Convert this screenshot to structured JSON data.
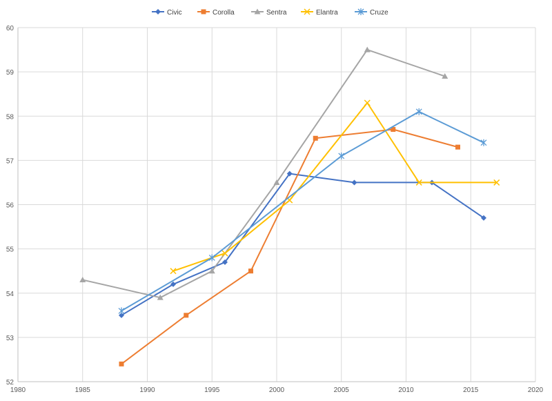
{
  "chart_data": {
    "type": "line",
    "title": "",
    "xlabel": "",
    "ylabel": "",
    "xlim": [
      1980,
      2020
    ],
    "ylim": [
      52,
      60
    ],
    "x_ticks": [
      1980,
      1985,
      1990,
      1995,
      2000,
      2005,
      2010,
      2015,
      2020
    ],
    "y_ticks": [
      52,
      53,
      54,
      55,
      56,
      57,
      58,
      59,
      60
    ],
    "grid": true,
    "legend_position": "top",
    "series": [
      {
        "name": "Civic",
        "color": "#4472C4",
        "marker": "diamond",
        "points": [
          [
            1988,
            53.5
          ],
          [
            1992,
            54.2
          ],
          [
            1996,
            54.7
          ],
          [
            2001,
            56.7
          ],
          [
            2006,
            56.5
          ],
          [
            2012,
            56.5
          ],
          [
            2016,
            55.7
          ]
        ]
      },
      {
        "name": "Corolla",
        "color": "#ED7D31",
        "marker": "square",
        "points": [
          [
            1988,
            52.4
          ],
          [
            1993,
            53.5
          ],
          [
            1998,
            54.5
          ],
          [
            2003,
            57.5
          ],
          [
            2009,
            57.7
          ],
          [
            2014,
            57.3
          ]
        ]
      },
      {
        "name": "Sentra",
        "color": "#A5A5A5",
        "marker": "triangle",
        "points": [
          [
            1985,
            54.3
          ],
          [
            1991,
            53.9
          ],
          [
            1995,
            54.5
          ],
          [
            2000,
            56.5
          ],
          [
            2007,
            59.5
          ],
          [
            2013,
            58.9
          ]
        ]
      },
      {
        "name": "Elantra",
        "color": "#FFC000",
        "marker": "x",
        "points": [
          [
            1992,
            54.5
          ],
          [
            1996,
            54.9
          ],
          [
            2001,
            56.1
          ],
          [
            2007,
            58.3
          ],
          [
            2011,
            56.5
          ],
          [
            2017,
            56.5
          ]
        ]
      },
      {
        "name": "Cruze",
        "color": "#5B9BD5",
        "marker": "star",
        "points": [
          [
            1988,
            53.6
          ],
          [
            1995,
            54.8
          ],
          [
            2005,
            57.1
          ],
          [
            2011,
            58.1
          ],
          [
            2016,
            57.4
          ]
        ]
      }
    ]
  }
}
